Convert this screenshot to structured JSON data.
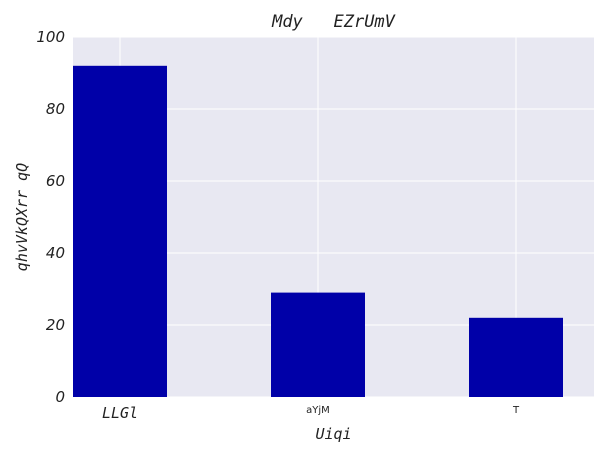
{
  "chart_data": {
    "type": "bar",
    "title": "Mdy   EZrUmV",
    "xlabel": "Uiqi",
    "ylabel": "qhvVkQXrr qQ",
    "categories": [
      "LLGl",
      "aYjM",
      "T"
    ],
    "values": [
      92,
      29,
      22
    ],
    "ylim": [
      0,
      100
    ],
    "yticks": [
      0,
      20,
      40,
      60,
      80,
      100
    ],
    "grid": true,
    "bar_color": "#0000a8",
    "background_color": "#e8e8f2",
    "grid_color": "#ffffff"
  }
}
